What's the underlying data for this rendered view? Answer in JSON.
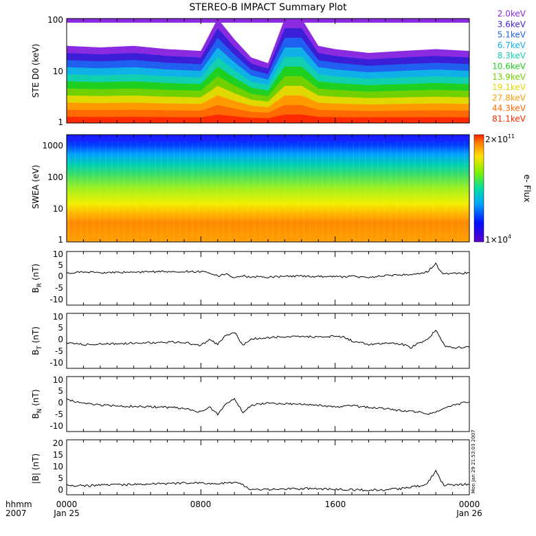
{
  "title": "STEREO-B IMPACT Summary Plot",
  "colors": {
    "ste_channels": [
      "#8a2be2",
      "#3a1fd6",
      "#2060f0",
      "#10b0e8",
      "#10d0b0",
      "#20d020",
      "#70d000",
      "#e0d800",
      "#ff9a00",
      "#ff6a00",
      "#ff2a00"
    ],
    "line": "#000000"
  },
  "timestamp": "Mon Jan 29 21:53:03 2007",
  "time_axis": {
    "label_line1": "hhmm",
    "label_line2": "2007",
    "ticks": [
      {
        "hhmm": "0000",
        "date": "Jan 25"
      },
      {
        "hhmm": "0800",
        "date": ""
      },
      {
        "hhmm": "1600",
        "date": ""
      },
      {
        "hhmm": "0000",
        "date": "Jan 26"
      }
    ]
  },
  "chart_data": [
    {
      "type": "area",
      "panel": "ste",
      "ylabel": "STE D0 (keV)",
      "yscale": "log",
      "ylim": [
        1,
        100
      ],
      "ytick_labels": [
        "100",
        "10",
        "1"
      ],
      "legend_placement": "right",
      "channels": [
        "2.0keV",
        "3.6keV",
        "5.1keV",
        "6.7keV",
        "8.3keV",
        "10.6keV",
        "13.9keV",
        "19.1keV",
        "27.8keV",
        "44.3keV",
        "81.1keV"
      ],
      "x_hours": [
        0,
        2,
        4,
        6,
        8,
        9,
        10,
        11,
        12,
        13,
        14,
        15,
        16,
        18,
        20,
        22,
        24
      ],
      "upper_envelope_keV": [
        30,
        28,
        30,
        26,
        24,
        100,
        40,
        18,
        14,
        100,
        100,
        30,
        26,
        22,
        24,
        26,
        24
      ]
    },
    {
      "type": "heatmap",
      "panel": "swea",
      "ylabel": "SWEA (eV)",
      "yscale": "log",
      "ylim": [
        1,
        2000
      ],
      "ytick_labels": [
        "1000",
        "100",
        "10",
        "1"
      ],
      "colorbar": {
        "label": "e- Flux",
        "max_label": "2×10",
        "max_exp": "11",
        "min_label": "1×10",
        "min_exp": "4"
      }
    },
    {
      "type": "line",
      "panel": "br",
      "ylabel_main": "B",
      "ylabel_sub": "R",
      "ylabel_tail": " (nT)",
      "ylim": [
        -12,
        12
      ],
      "ytick_labels": [
        "10",
        "5",
        "0",
        "-5",
        "-10"
      ],
      "x_hours": [
        0,
        1,
        2,
        3,
        4,
        5,
        6,
        7,
        8,
        8.5,
        9,
        9.5,
        10,
        10.5,
        11,
        11.5,
        12,
        13,
        14,
        15,
        16,
        17,
        18,
        19,
        20,
        21,
        21.5,
        22,
        22.3,
        22.5,
        23,
        24
      ],
      "values": [
        2.5,
        2.8,
        2.5,
        2.6,
        2.7,
        2.9,
        3.0,
        3.1,
        3.0,
        2.6,
        1.0,
        1.8,
        0.2,
        1.2,
        0.4,
        0.8,
        0.5,
        0.8,
        1.0,
        0.8,
        0.6,
        0.8,
        0.5,
        1.2,
        1.5,
        2.0,
        3.0,
        6.5,
        3.0,
        1.8,
        2.2,
        2.4
      ]
    },
    {
      "type": "line",
      "panel": "bt",
      "ylabel_main": "B",
      "ylabel_sub": "T",
      "ylabel_tail": " (nT)",
      "ylim": [
        -12,
        12
      ],
      "ytick_labels": [
        "10",
        "5",
        "0",
        "-5",
        "-10"
      ],
      "x_hours": [
        0,
        1,
        2,
        3,
        4,
        5,
        6,
        7,
        7.5,
        8,
        8.5,
        9,
        9.5,
        10,
        10.5,
        11,
        11.5,
        12,
        13,
        14,
        15,
        16,
        16.5,
        17,
        18,
        19,
        20,
        20.5,
        21,
        21.5,
        22,
        22.5,
        23,
        24
      ],
      "values": [
        -1.0,
        -1.6,
        -1.4,
        -1.2,
        -1.0,
        -0.8,
        -0.6,
        -0.5,
        -1.5,
        -2.0,
        0.5,
        -1.5,
        2.5,
        3.8,
        -2.0,
        1.0,
        1.0,
        1.4,
        1.8,
        2.0,
        1.6,
        2.0,
        1.8,
        0.0,
        -1.6,
        -1.2,
        -1.4,
        -3.0,
        -1.0,
        0.5,
        5.0,
        -2.0,
        -3.0,
        -2.8
      ]
    },
    {
      "type": "line",
      "panel": "bn",
      "ylabel_main": "B",
      "ylabel_sub": "N",
      "ylabel_tail": " (nT)",
      "ylim": [
        -12,
        12
      ],
      "ytick_labels": [
        "10",
        "5",
        "0",
        "-5",
        "-10"
      ],
      "x_hours": [
        0,
        1,
        2,
        3,
        4,
        5,
        6,
        7,
        8,
        8.5,
        9,
        9.5,
        10,
        10.5,
        11,
        12,
        13,
        14,
        15,
        16,
        17,
        18,
        19,
        20,
        21,
        21.5,
        22,
        22.5,
        23,
        24
      ],
      "values": [
        2.0,
        0.2,
        -0.5,
        -0.8,
        -1.0,
        -1.2,
        -1.4,
        -1.8,
        -3.5,
        -1.2,
        -4.5,
        0.3,
        2.5,
        -3.5,
        -0.5,
        0.5,
        0.2,
        -0.2,
        -0.5,
        -1.2,
        -0.8,
        -1.5,
        -2.0,
        -3.0,
        -3.5,
        -4.5,
        -3.2,
        -1.8,
        -0.5,
        1.0
      ]
    },
    {
      "type": "line",
      "panel": "bmag",
      "ylabel_main": "|B| (nT)",
      "ylim": [
        -1,
        21
      ],
      "ytick_labels": [
        "20",
        "15",
        "10",
        "5",
        "0"
      ],
      "x_hours": [
        0,
        1,
        2,
        3,
        4,
        5,
        6,
        7,
        8,
        9,
        9.5,
        10,
        10.5,
        11,
        11.5,
        12,
        13,
        14,
        15,
        16,
        17,
        18,
        19,
        20,
        21,
        21.5,
        22,
        22.3,
        22.5,
        23,
        24
      ],
      "values": [
        2.8,
        2.6,
        2.8,
        3.0,
        3.1,
        3.3,
        3.5,
        3.6,
        3.8,
        3.5,
        3.8,
        4.0,
        3.0,
        0.8,
        1.2,
        1.0,
        1.2,
        1.5,
        1.4,
        1.2,
        1.0,
        0.8,
        1.0,
        1.5,
        2.5,
        3.5,
        8.8,
        4.5,
        3.0,
        3.0,
        3.2
      ]
    }
  ]
}
